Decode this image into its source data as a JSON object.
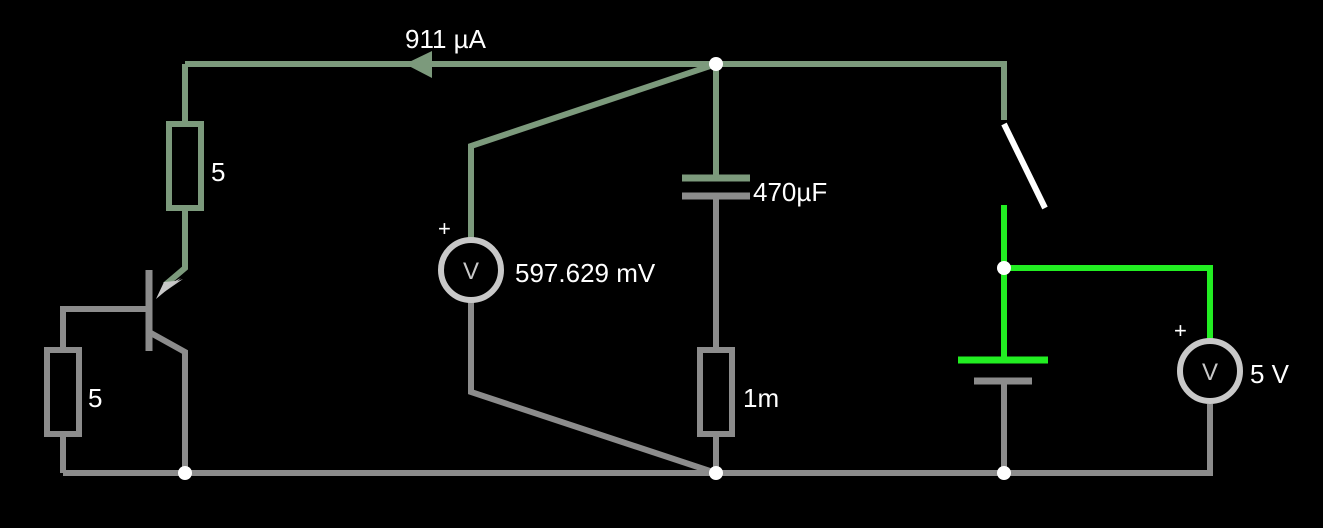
{
  "colors": {
    "background": "#000000",
    "wire_idle": "#8c8c8c",
    "wire_current": "#7c9a7c",
    "wire_high": "#22ee22",
    "node": "#ffffff",
    "switch_blade": "#ffffff",
    "meter_ring": "#c8c8c8",
    "label": "#ffffff"
  },
  "labels": {
    "current_reading": "911 µA",
    "resistor_top_value": "5",
    "resistor_base_value": "5",
    "capacitor_value": "470µF",
    "resistor_series_value": "1m",
    "voltmeter_left_reading": "597.629 mV",
    "voltmeter_right_reading": "5 V",
    "voltmeter_letter": "V",
    "plus_sign": "+"
  }
}
